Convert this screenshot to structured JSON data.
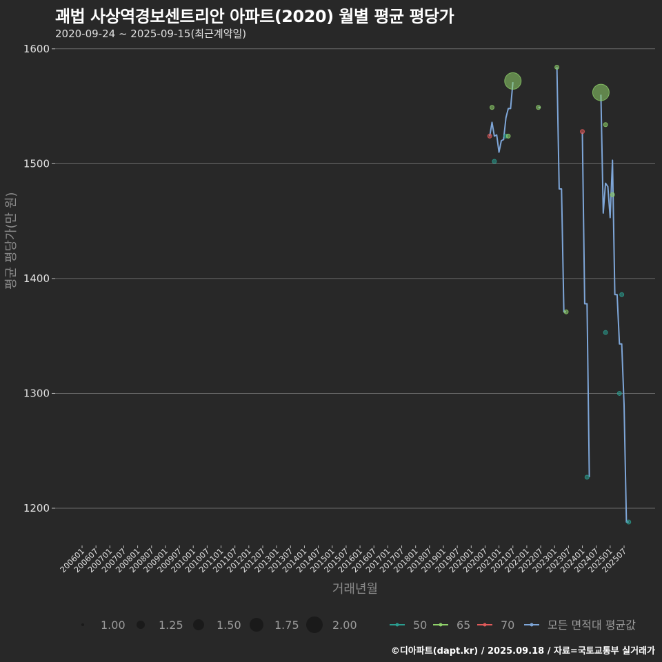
{
  "title": "괘법 사상역경보센트리안 아파트(2020) 월별 평균 평당가",
  "subtitle": "2020-09-24 ~ 2025-09-15(최근계약일)",
  "footer": "©디아파트(dapt.kr) / 2025.09.18 / 자료=국토교통부 실거래가",
  "colors": {
    "background": "#282828",
    "grid": "#6a6a6a",
    "series_50": "#2a9d8f",
    "series_65": "#8fd16a",
    "series_70": "#e05a5a",
    "series_avg": "#7ea6d8"
  },
  "legend": {
    "size_title": "",
    "sizes": [
      "1.00",
      "1.25",
      "1.50",
      "1.75",
      "2.00"
    ],
    "series": [
      "50",
      "65",
      "70",
      "모든 면적대 평균값"
    ]
  },
  "chart_data": {
    "type": "line",
    "title": "괘법 사상역경보센트리안 아파트(2020) 월별 평균 평당가",
    "subtitle": "2020-09-24 ~ 2025-09-15(최근계약일)",
    "xlabel": "거래년월",
    "ylabel": "평균 평당가(만 원)",
    "ylim": [
      1170,
      1610
    ],
    "yticks": [
      1200,
      1300,
      1400,
      1500,
      1600
    ],
    "xticks": [
      "200601",
      "200607",
      "200701",
      "200707",
      "200801",
      "200807",
      "200901",
      "200907",
      "201001",
      "201007",
      "201101",
      "201107",
      "201201",
      "201207",
      "201301",
      "201307",
      "201401",
      "201407",
      "201501",
      "201507",
      "201601",
      "201607",
      "201701",
      "201707",
      "201801",
      "201807",
      "201901",
      "201907",
      "202001",
      "202007",
      "202101",
      "202107",
      "202201",
      "202207",
      "202301",
      "202307",
      "202401",
      "202407",
      "202501",
      "202507"
    ],
    "grid": true,
    "legend_position": "bottom",
    "series": [
      {
        "name": "50",
        "points": [
          {
            "x": "202011",
            "y": 1502,
            "size": 1
          },
          {
            "x": "202104",
            "y": 1524,
            "size": 1
          },
          {
            "x": "202403",
            "y": 1227,
            "size": 1
          },
          {
            "x": "202411",
            "y": 1353,
            "size": 1
          },
          {
            "x": "202505",
            "y": 1300,
            "size": 1
          },
          {
            "x": "202506",
            "y": 1386,
            "size": 1
          },
          {
            "x": "202509",
            "y": 1188,
            "size": 1
          }
        ]
      },
      {
        "name": "65",
        "points": [
          {
            "x": "202010",
            "y": 1549,
            "size": 1
          },
          {
            "x": "202105",
            "y": 1524,
            "size": 1
          },
          {
            "x": "202107",
            "y": 1572,
            "size": 2
          },
          {
            "x": "202206",
            "y": 1549,
            "size": 1
          },
          {
            "x": "202302",
            "y": 1584,
            "size": 1
          },
          {
            "x": "202306",
            "y": 1371,
            "size": 1
          },
          {
            "x": "202409",
            "y": 1562,
            "size": 2
          },
          {
            "x": "202411",
            "y": 1534,
            "size": 1
          },
          {
            "x": "202502",
            "y": 1473,
            "size": 1
          }
        ]
      },
      {
        "name": "70",
        "points": [
          {
            "x": "202009",
            "y": 1524,
            "size": 1
          },
          {
            "x": "202401",
            "y": 1528,
            "size": 1
          }
        ]
      },
      {
        "name": "모든 면적대 평균값",
        "points": [
          {
            "x": "202009",
            "y": 1524
          },
          {
            "x": "202010",
            "y": 1536
          },
          {
            "x": "202011",
            "y": 1524
          },
          {
            "x": "202012",
            "y": 1525
          },
          {
            "x": "202101",
            "y": 1510
          },
          {
            "x": "202102",
            "y": 1520
          },
          {
            "x": "202103",
            "y": 1521
          },
          {
            "x": "202104",
            "y": 1540
          },
          {
            "x": "202105",
            "y": 1548
          },
          {
            "x": "202106",
            "y": 1548
          },
          {
            "x": "202107",
            "y": 1571
          },
          {
            "x": "202206",
            "y": 1549
          },
          {
            "x": "202207",
            "y": 1549
          },
          {
            "x": "202302",
            "y": 1584
          },
          {
            "x": "202303",
            "y": 1478
          },
          {
            "x": "202304",
            "y": 1478
          },
          {
            "x": "202305",
            "y": 1371
          },
          {
            "x": "202306",
            "y": 1371
          },
          {
            "x": "202401",
            "y": 1527
          },
          {
            "x": "202402",
            "y": 1378
          },
          {
            "x": "202403",
            "y": 1378
          },
          {
            "x": "202404",
            "y": 1227
          },
          {
            "x": "202409",
            "y": 1560
          },
          {
            "x": "202410",
            "y": 1457
          },
          {
            "x": "202411",
            "y": 1483
          },
          {
            "x": "202412",
            "y": 1480
          },
          {
            "x": "202501",
            "y": 1453
          },
          {
            "x": "202502",
            "y": 1503
          },
          {
            "x": "202503",
            "y": 1386
          },
          {
            "x": "202504",
            "y": 1386
          },
          {
            "x": "202505",
            "y": 1343
          },
          {
            "x": "202506",
            "y": 1343
          },
          {
            "x": "202507",
            "y": 1290
          },
          {
            "x": "202508",
            "y": 1188
          },
          {
            "x": "202509",
            "y": 1188
          }
        ]
      }
    ]
  }
}
